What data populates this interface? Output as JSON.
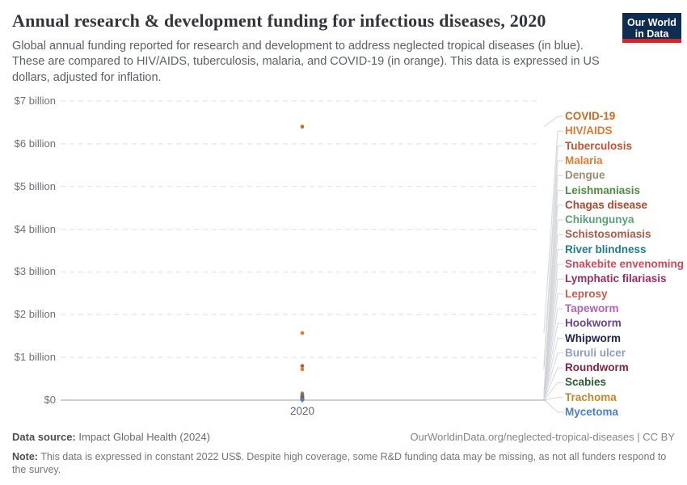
{
  "header": {
    "title": "Annual research & development funding for infectious diseases, 2020",
    "subtitle": "Global annual funding reported for research and development to address neglected tropical diseases (in blue). These are compared to HIV/AIDS, tuberculosis, malaria, and COVID-19 (in orange). This data is expressed in US dollars, adjusted for inflation."
  },
  "logo": {
    "line1": "Our World",
    "line2": "in Data",
    "bg_color": "#0f2c51",
    "stripe_color": "#d8231e"
  },
  "chart_data": {
    "type": "scatter",
    "title": "Annual research & development funding for infectious diseases, 2020",
    "x": [
      2020
    ],
    "x_tick_label": "2020",
    "y_axis": {
      "tick_labels": [
        "$0",
        "$1 billion",
        "$2 billion",
        "$3 billion",
        "$4 billion",
        "$5 billion",
        "$6 billion",
        "$7 billion"
      ],
      "ylim_billion_usd": [
        0,
        7
      ]
    },
    "grid": "dashed-horizontal",
    "legend_position": "right",
    "series": [
      {
        "name": "COVID-19",
        "color": "#c9681f",
        "value_billion_usd": 6.4
      },
      {
        "name": "HIV/AIDS",
        "color": "#dd7733",
        "value_billion_usd": 1.57
      },
      {
        "name": "Tuberculosis",
        "color": "#c25130",
        "value_billion_usd": 0.8
      },
      {
        "name": "Malaria",
        "color": "#dc7d33",
        "value_billion_usd": 0.72
      },
      {
        "name": "Dengue",
        "color": "#9c8b73",
        "value_billion_usd": 0.16
      },
      {
        "name": "Leishmaniasis",
        "color": "#4b8e3f",
        "value_billion_usd": 0.12
      },
      {
        "name": "Chagas disease",
        "color": "#b0452b",
        "value_billion_usd": 0.1
      },
      {
        "name": "Chikungunya",
        "color": "#5aa179",
        "value_billion_usd": 0.08
      },
      {
        "name": "Schistosomiasis",
        "color": "#ab5c47",
        "value_billion_usd": 0.07
      },
      {
        "name": "River blindness",
        "color": "#1e7d8e",
        "value_billion_usd": 0.06
      },
      {
        "name": "Snakebite envenoming",
        "color": "#cc4a5d",
        "value_billion_usd": 0.05
      },
      {
        "name": "Lymphatic filariasis",
        "color": "#9c2d62",
        "value_billion_usd": 0.045
      },
      {
        "name": "Leprosy",
        "color": "#c2604e",
        "value_billion_usd": 0.04
      },
      {
        "name": "Tapeworm",
        "color": "#b163ad",
        "value_billion_usd": 0.03
      },
      {
        "name": "Hookworm",
        "color": "#703f8f",
        "value_billion_usd": 0.028
      },
      {
        "name": "Whipworm",
        "color": "#23254f",
        "value_billion_usd": 0.022
      },
      {
        "name": "Buruli ulcer",
        "color": "#8e9cc9",
        "value_billion_usd": 0.018
      },
      {
        "name": "Roundworm",
        "color": "#7e2540",
        "value_billion_usd": 0.015
      },
      {
        "name": "Scabies",
        "color": "#2e5c31",
        "value_billion_usd": 0.012
      },
      {
        "name": "Trachoma",
        "color": "#bf8730",
        "value_billion_usd": 0.01
      },
      {
        "name": "Mycetoma",
        "color": "#4c7fc3",
        "value_billion_usd": 0.006
      }
    ]
  },
  "footer": {
    "datasource_label": "Data source:",
    "datasource_value": "Impact Global Health (2024)",
    "url_text": "OurWorldinData.org/neglected-tropical-diseases | CC BY",
    "note_label": "Note:",
    "note_text": "This data is expressed in constant 2022 US$. Despite high coverage, some R&D funding data may be missing, as not all funders respond to the survey."
  }
}
